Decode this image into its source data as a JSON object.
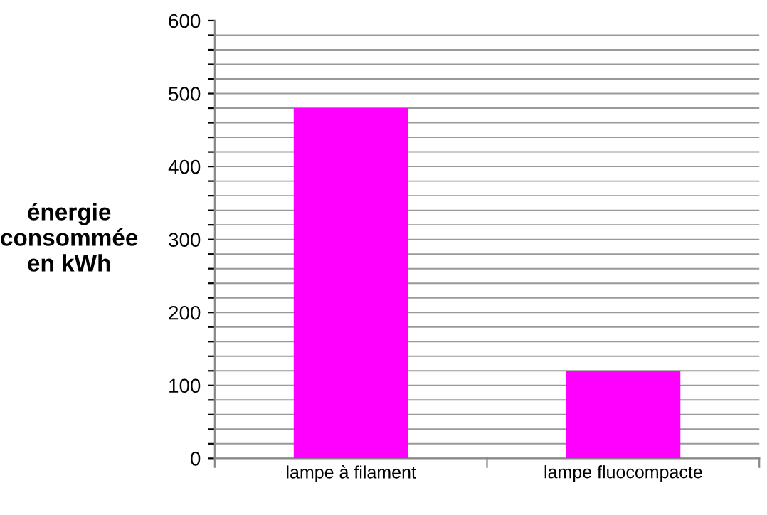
{
  "chart_data": {
    "type": "bar",
    "ylabel": "énergie\nconsommée\nen kWh",
    "categories": [
      "lampe à filament",
      "lampe fluocompacte"
    ],
    "values": [
      480,
      120
    ],
    "color": "#ff00ff",
    "ylim": [
      0,
      600
    ],
    "yticks": [
      0,
      {
        "value": 20,
        "label": null
      },
      {
        "value": 40,
        "label": null
      },
      {
        "value": 60,
        "label": null
      },
      {
        "value": 80,
        "label": null
      },
      100,
      {
        "value": 120,
        "label": null
      },
      {
        "value": 140,
        "label": null
      },
      {
        "value": 160,
        "label": null
      },
      {
        "value": 180,
        "label": null
      },
      200,
      {
        "value": 220,
        "label": null
      },
      {
        "value": 240,
        "label": null
      },
      {
        "value": 260,
        "label": null
      },
      {
        "value": 280,
        "label": null
      },
      300,
      {
        "value": 320,
        "label": null
      },
      {
        "value": 340,
        "label": null
      },
      {
        "value": 360,
        "label": null
      },
      {
        "value": 380,
        "label": null
      },
      400,
      {
        "value": 420,
        "label": null
      },
      {
        "value": 440,
        "label": null
      },
      {
        "value": 460,
        "label": null
      },
      {
        "value": 480,
        "label": null
      },
      500,
      {
        "value": 520,
        "label": null
      },
      {
        "value": 540,
        "label": null
      },
      {
        "value": 560,
        "label": null
      },
      {
        "value": 580,
        "label": null
      },
      600
    ],
    "grid": "y"
  }
}
